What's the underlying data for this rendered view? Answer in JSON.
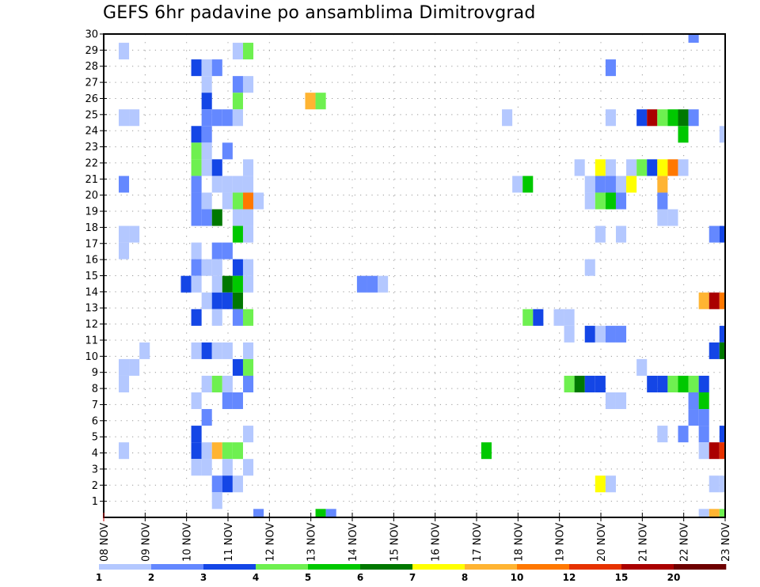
{
  "chart_data": {
    "type": "heatmap",
    "title": "GEFS 6hr padavine po ansamblima Dimitrovgrad",
    "xlabel": "",
    "ylabel": "",
    "x_ticks": [
      "08 NOV",
      "09 NOV",
      "10 NOV",
      "11 NOV",
      "12 NOV",
      "13 NOV",
      "14 NOV",
      "15 NOV",
      "16 NOV",
      "17 NOV",
      "18 NOV",
      "19 NOV",
      "20 NOV",
      "21 NOV",
      "22 NOV",
      "23 NOV"
    ],
    "y_ticks": [
      1,
      2,
      3,
      4,
      5,
      6,
      7,
      8,
      9,
      10,
      11,
      12,
      13,
      14,
      15,
      16,
      17,
      18,
      19,
      20,
      21,
      22,
      23,
      24,
      25,
      26,
      27,
      28,
      29,
      30
    ],
    "xlim_steps": [
      0,
      60
    ],
    "ylim": [
      0,
      30
    ],
    "x_unit": "6-hour steps from 08 NOV",
    "y_unit": "ensemble member",
    "grid": true,
    "legend": {
      "placement": "bottom",
      "labels": [
        "1",
        "2",
        "3",
        "4",
        "5",
        "6",
        "7",
        "8",
        "10",
        "12",
        "15",
        "20"
      ],
      "colors": [
        "#b4c8ff",
        "#6488ff",
        "#1446e6",
        "#6ef050",
        "#00c800",
        "#007800",
        "#ffff00",
        "#ffb432",
        "#ff7800",
        "#e63200",
        "#aa0000",
        "#6e0000"
      ]
    },
    "cells_format": [
      "step",
      "member",
      "class"
    ],
    "cells": [
      [
        57,
        30,
        2
      ],
      [
        2,
        29,
        1
      ],
      [
        13,
        29,
        1
      ],
      [
        14,
        29,
        4
      ],
      [
        9,
        28,
        3
      ],
      [
        10,
        28,
        1
      ],
      [
        11,
        28,
        2
      ],
      [
        49,
        28,
        2
      ],
      [
        10,
        27,
        1
      ],
      [
        13,
        27,
        2
      ],
      [
        14,
        27,
        1
      ],
      [
        10,
        26,
        3
      ],
      [
        13,
        26,
        4
      ],
      [
        20,
        26,
        8
      ],
      [
        21,
        26,
        4
      ],
      [
        2,
        25,
        1
      ],
      [
        3,
        25,
        1
      ],
      [
        10,
        25,
        2
      ],
      [
        11,
        25,
        2
      ],
      [
        12,
        25,
        2
      ],
      [
        13,
        25,
        1
      ],
      [
        39,
        25,
        1
      ],
      [
        49,
        25,
        1
      ],
      [
        52,
        25,
        3
      ],
      [
        53,
        25,
        11
      ],
      [
        54,
        25,
        4
      ],
      [
        55,
        25,
        5
      ],
      [
        56,
        25,
        6
      ],
      [
        57,
        25,
        2
      ],
      [
        9,
        24,
        3
      ],
      [
        10,
        24,
        2
      ],
      [
        56,
        24,
        5
      ],
      [
        60,
        24,
        1
      ],
      [
        9,
        23,
        4
      ],
      [
        10,
        23,
        1
      ],
      [
        12,
        23,
        2
      ],
      [
        9,
        22,
        4
      ],
      [
        10,
        22,
        1
      ],
      [
        11,
        22,
        3
      ],
      [
        14,
        22,
        1
      ],
      [
        46,
        22,
        1
      ],
      [
        48,
        22,
        7
      ],
      [
        49,
        22,
        1
      ],
      [
        51,
        22,
        1
      ],
      [
        52,
        22,
        4
      ],
      [
        53,
        22,
        3
      ],
      [
        54,
        22,
        7
      ],
      [
        55,
        22,
        9
      ],
      [
        56,
        22,
        1
      ],
      [
        2,
        21,
        2
      ],
      [
        9,
        21,
        2
      ],
      [
        11,
        21,
        1
      ],
      [
        12,
        21,
        1
      ],
      [
        13,
        21,
        1
      ],
      [
        14,
        21,
        1
      ],
      [
        40,
        21,
        1
      ],
      [
        41,
        21,
        5
      ],
      [
        47,
        21,
        1
      ],
      [
        48,
        21,
        2
      ],
      [
        49,
        21,
        2
      ],
      [
        50,
        21,
        1
      ],
      [
        51,
        21,
        7
      ],
      [
        54,
        21,
        8
      ],
      [
        9,
        20,
        2
      ],
      [
        10,
        20,
        1
      ],
      [
        12,
        20,
        1
      ],
      [
        13,
        20,
        4
      ],
      [
        14,
        20,
        9
      ],
      [
        15,
        20,
        1
      ],
      [
        47,
        20,
        1
      ],
      [
        48,
        20,
        4
      ],
      [
        49,
        20,
        5
      ],
      [
        50,
        20,
        2
      ],
      [
        54,
        20,
        2
      ],
      [
        9,
        19,
        2
      ],
      [
        10,
        19,
        2
      ],
      [
        11,
        19,
        6
      ],
      [
        13,
        19,
        1
      ],
      [
        14,
        19,
        1
      ],
      [
        54,
        19,
        1
      ],
      [
        55,
        19,
        1
      ],
      [
        2,
        18,
        1
      ],
      [
        3,
        18,
        1
      ],
      [
        13,
        18,
        5
      ],
      [
        14,
        18,
        1
      ],
      [
        48,
        18,
        1
      ],
      [
        50,
        18,
        1
      ],
      [
        59,
        18,
        2
      ],
      [
        60,
        18,
        3
      ],
      [
        2,
        17,
        1
      ],
      [
        9,
        17,
        1
      ],
      [
        11,
        17,
        2
      ],
      [
        12,
        17,
        2
      ],
      [
        9,
        16,
        2
      ],
      [
        10,
        16,
        1
      ],
      [
        11,
        16,
        1
      ],
      [
        13,
        16,
        3
      ],
      [
        14,
        16,
        1
      ],
      [
        47,
        16,
        1
      ],
      [
        8,
        15,
        3
      ],
      [
        9,
        15,
        1
      ],
      [
        11,
        15,
        1
      ],
      [
        12,
        15,
        6
      ],
      [
        13,
        15,
        5
      ],
      [
        14,
        15,
        1
      ],
      [
        25,
        15,
        2
      ],
      [
        26,
        15,
        2
      ],
      [
        27,
        15,
        1
      ],
      [
        10,
        14,
        1
      ],
      [
        11,
        14,
        3
      ],
      [
        12,
        14,
        3
      ],
      [
        13,
        14,
        6
      ],
      [
        58,
        14,
        8
      ],
      [
        59,
        14,
        11
      ],
      [
        60,
        14,
        9
      ],
      [
        9,
        13,
        3
      ],
      [
        11,
        13,
        1
      ],
      [
        13,
        13,
        2
      ],
      [
        14,
        13,
        4
      ],
      [
        41,
        13,
        4
      ],
      [
        42,
        13,
        3
      ],
      [
        44,
        13,
        1
      ],
      [
        45,
        13,
        1
      ],
      [
        45,
        12,
        1
      ],
      [
        47,
        12,
        3
      ],
      [
        48,
        12,
        1
      ],
      [
        49,
        12,
        2
      ],
      [
        50,
        12,
        2
      ],
      [
        60,
        12,
        3
      ],
      [
        4,
        11,
        1
      ],
      [
        9,
        11,
        1
      ],
      [
        10,
        11,
        3
      ],
      [
        11,
        11,
        1
      ],
      [
        12,
        11,
        1
      ],
      [
        14,
        11,
        1
      ],
      [
        59,
        11,
        3
      ],
      [
        60,
        11,
        6
      ],
      [
        2,
        10,
        1
      ],
      [
        3,
        10,
        1
      ],
      [
        13,
        10,
        3
      ],
      [
        14,
        10,
        4
      ],
      [
        52,
        10,
        1
      ],
      [
        2,
        9,
        1
      ],
      [
        10,
        9,
        1
      ],
      [
        11,
        9,
        4
      ],
      [
        12,
        9,
        1
      ],
      [
        14,
        9,
        2
      ],
      [
        45,
        9,
        4
      ],
      [
        46,
        9,
        6
      ],
      [
        47,
        9,
        3
      ],
      [
        48,
        9,
        3
      ],
      [
        53,
        9,
        3
      ],
      [
        54,
        9,
        3
      ],
      [
        55,
        9,
        4
      ],
      [
        56,
        9,
        5
      ],
      [
        57,
        9,
        4
      ],
      [
        58,
        9,
        3
      ],
      [
        9,
        8,
        1
      ],
      [
        12,
        8,
        2
      ],
      [
        13,
        8,
        2
      ],
      [
        49,
        8,
        1
      ],
      [
        50,
        8,
        1
      ],
      [
        57,
        8,
        2
      ],
      [
        58,
        8,
        5
      ],
      [
        10,
        7,
        2
      ],
      [
        57,
        7,
        2
      ],
      [
        58,
        7,
        2
      ],
      [
        9,
        6,
        3
      ],
      [
        14,
        6,
        1
      ],
      [
        54,
        6,
        1
      ],
      [
        56,
        6,
        2
      ],
      [
        58,
        6,
        2
      ],
      [
        60,
        6,
        3
      ],
      [
        2,
        5,
        1
      ],
      [
        9,
        5,
        3
      ],
      [
        10,
        5,
        1
      ],
      [
        11,
        5,
        8
      ],
      [
        12,
        5,
        4
      ],
      [
        13,
        5,
        4
      ],
      [
        37,
        5,
        5
      ],
      [
        58,
        5,
        1
      ],
      [
        59,
        5,
        11
      ],
      [
        60,
        5,
        10
      ],
      [
        9,
        4,
        1
      ],
      [
        10,
        4,
        1
      ],
      [
        12,
        4,
        1
      ],
      [
        14,
        4,
        1
      ],
      [
        11,
        3,
        2
      ],
      [
        12,
        3,
        3
      ],
      [
        13,
        3,
        1
      ],
      [
        48,
        3,
        7
      ],
      [
        49,
        3,
        1
      ],
      [
        59,
        3,
        1
      ],
      [
        60,
        3,
        1
      ],
      [
        11,
        2,
        1
      ],
      [
        15,
        1,
        2
      ],
      [
        21,
        1,
        5
      ],
      [
        22,
        1,
        2
      ],
      [
        58,
        1,
        1
      ],
      [
        59,
        1,
        8
      ],
      [
        60,
        1,
        4
      ]
    ]
  }
}
